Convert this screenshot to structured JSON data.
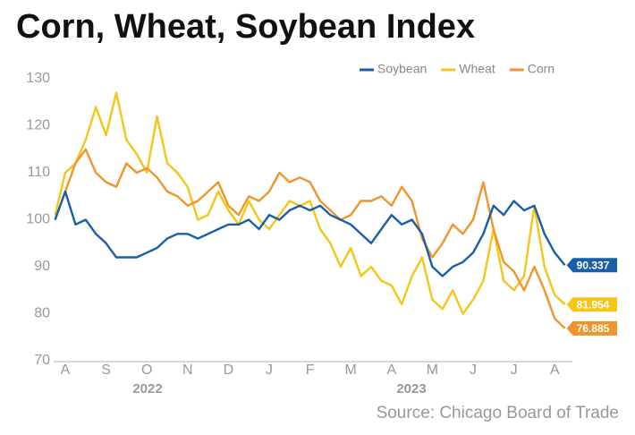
{
  "chart_data": {
    "type": "line",
    "title": "Corn, Wheat, Soybean Index",
    "source": "Source: Chicago Board of Trade",
    "categories": [
      null,
      "A",
      null,
      null,
      null,
      "S",
      null,
      null,
      null,
      "O",
      null,
      null,
      null,
      "N",
      null,
      null,
      null,
      "D",
      null,
      null,
      null,
      "J",
      null,
      null,
      null,
      "F",
      null,
      null,
      null,
      "M",
      null,
      null,
      null,
      "A",
      null,
      null,
      null,
      "M",
      null,
      null,
      null,
      "J",
      null,
      null,
      null,
      "J",
      null,
      null,
      null,
      "A",
      null
    ],
    "year_labels": [
      "2022",
      "2023"
    ],
    "series": [
      {
        "name": "Soybean",
        "color": "#1a5ea8",
        "values": [
          100,
          106,
          99,
          100,
          97,
          95,
          92,
          92,
          92,
          93,
          94,
          96,
          97,
          97,
          96,
          97,
          98,
          99,
          99,
          100,
          98,
          101,
          100,
          102,
          103,
          102,
          103,
          101,
          100,
          99,
          97,
          95,
          98,
          101,
          99,
          100,
          97,
          90,
          88,
          90,
          91,
          93,
          97,
          103,
          101,
          104,
          102,
          103,
          97,
          93,
          90.337
        ]
      },
      {
        "name": "Wheat",
        "color": "#f5c518",
        "values": [
          101,
          110,
          112,
          117,
          124,
          118,
          127,
          117,
          114,
          110,
          122,
          112,
          110,
          107,
          100,
          101,
          106,
          102,
          99,
          104,
          100,
          98,
          101,
          104,
          103,
          104,
          98,
          95,
          90,
          94,
          88,
          90,
          87,
          86,
          82,
          88,
          92,
          83,
          81,
          85,
          80,
          83,
          87,
          98,
          87,
          85,
          88,
          103,
          90,
          84,
          81.954
        ]
      },
      {
        "name": "Corn",
        "color": "#f0952b",
        "values": [
          100,
          106,
          112,
          115,
          110,
          108,
          107,
          112,
          110,
          111,
          109,
          106,
          105,
          103,
          104,
          106,
          108,
          103,
          101,
          105,
          104,
          106,
          110,
          108,
          109,
          108,
          104,
          102,
          100,
          101,
          104,
          104,
          105,
          103,
          107,
          104,
          96,
          92,
          95,
          99,
          97,
          100,
          108,
          98,
          91,
          89,
          85,
          90,
          85,
          79,
          76.885
        ]
      }
    ],
    "ylim": [
      70,
      130
    ],
    "yticks": [
      70,
      80,
      90,
      100,
      110,
      120,
      130
    ]
  }
}
